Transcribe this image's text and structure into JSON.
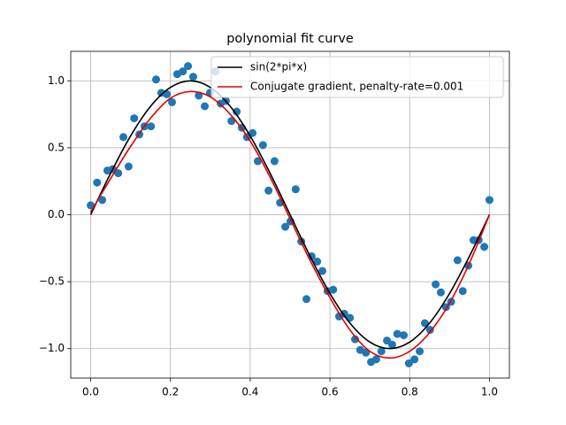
{
  "chart_data": {
    "type": "line",
    "title": "polynomial fit curve",
    "xlim": [
      -0.05,
      1.05
    ],
    "ylim": [
      -1.22,
      1.22
    ],
    "xticks": [
      {
        "value": 0,
        "label": "0.0"
      },
      {
        "value": 0.2,
        "label": "0.2"
      },
      {
        "value": 0.4,
        "label": "0.4"
      },
      {
        "value": 0.6,
        "label": "0.6"
      },
      {
        "value": 0.8,
        "label": "0.8"
      },
      {
        "value": 1,
        "label": "1.0"
      }
    ],
    "yticks": [
      {
        "value": -1,
        "label": "−1.0"
      },
      {
        "value": -0.5,
        "label": "−0.5"
      },
      {
        "value": 0,
        "label": "0.0"
      },
      {
        "value": 0.5,
        "label": "0.5"
      },
      {
        "value": 1,
        "label": "1.0"
      }
    ],
    "grid": true,
    "legend": "upper right",
    "scatter": {
      "color": "#1f77b4",
      "x": [
        0.0,
        0.016,
        0.029,
        0.042,
        0.055,
        0.069,
        0.082,
        0.095,
        0.109,
        0.122,
        0.135,
        0.151,
        0.164,
        0.177,
        0.191,
        0.204,
        0.217,
        0.231,
        0.244,
        0.257,
        0.271,
        0.286,
        0.299,
        0.313,
        0.326,
        0.339,
        0.353,
        0.366,
        0.379,
        0.392,
        0.406,
        0.419,
        0.432,
        0.446,
        0.461,
        0.475,
        0.488,
        0.501,
        0.514,
        0.528,
        0.541,
        0.554,
        0.568,
        0.581,
        0.594,
        0.608,
        0.623,
        0.636,
        0.65,
        0.663,
        0.676,
        0.69,
        0.703,
        0.716,
        0.729,
        0.743,
        0.756,
        0.769,
        0.785,
        0.798,
        0.812,
        0.825,
        0.838,
        0.851,
        0.865,
        0.878,
        0.891,
        0.904,
        0.92,
        0.933,
        0.947,
        0.96,
        0.973,
        0.987,
        1.0
      ],
      "y": [
        0.07,
        0.24,
        0.11,
        0.33,
        0.34,
        0.31,
        0.58,
        0.36,
        0.72,
        0.6,
        0.66,
        0.66,
        1.01,
        0.91,
        0.9,
        0.84,
        1.05,
        1.07,
        1.11,
        1.03,
        0.89,
        0.81,
        0.91,
        1.07,
        0.83,
        0.85,
        0.7,
        0.77,
        0.65,
        0.58,
        0.61,
        0.4,
        0.52,
        0.18,
        0.4,
        0.09,
        -0.09,
        -0.05,
        0.19,
        -0.2,
        -0.63,
        -0.31,
        -0.35,
        -0.42,
        -0.57,
        -0.56,
        -0.76,
        -0.74,
        -0.77,
        -0.93,
        -1.01,
        -1.03,
        -1.1,
        -1.08,
        -1.02,
        -0.94,
        -0.97,
        -0.89,
        -0.9,
        -1.11,
        -1.08,
        -1.02,
        -0.81,
        -0.86,
        -0.52,
        -0.58,
        -0.69,
        -0.65,
        -0.34,
        -0.57,
        -0.38,
        -0.19,
        -0.19,
        -0.24,
        0.11
      ]
    },
    "series": [
      {
        "name": "sin(2*pi*x)",
        "color": "#000000",
        "x": [
          0,
          0.05,
          0.1,
          0.15,
          0.2,
          0.25,
          0.3,
          0.35,
          0.4,
          0.45,
          0.5,
          0.55,
          0.6,
          0.65,
          0.7,
          0.75,
          0.8,
          0.85,
          0.9,
          0.95,
          1
        ],
        "values": [
          0,
          0.309,
          0.588,
          0.809,
          0.951,
          1,
          0.951,
          0.809,
          0.588,
          0.309,
          0,
          -0.309,
          -0.588,
          -0.809,
          -0.951,
          -1,
          -0.951,
          -0.809,
          -0.588,
          -0.309,
          0
        ]
      },
      {
        "name": "Conjugate gradient, penalty-rate=0.001",
        "color": "#e00000",
        "x": [
          0,
          0.05,
          0.1,
          0.15,
          0.2,
          0.25,
          0.3,
          0.35,
          0.4,
          0.45,
          0.5,
          0.55,
          0.6,
          0.65,
          0.7,
          0.75,
          0.8,
          0.85,
          0.9,
          0.95,
          1
        ],
        "values": [
          0.02,
          0.27,
          0.51,
          0.72,
          0.87,
          0.92,
          0.88,
          0.75,
          0.55,
          0.28,
          -0.03,
          -0.34,
          -0.62,
          -0.86,
          -1.02,
          -1.07,
          -1.02,
          -0.88,
          -0.66,
          -0.36,
          0.0
        ]
      }
    ]
  }
}
